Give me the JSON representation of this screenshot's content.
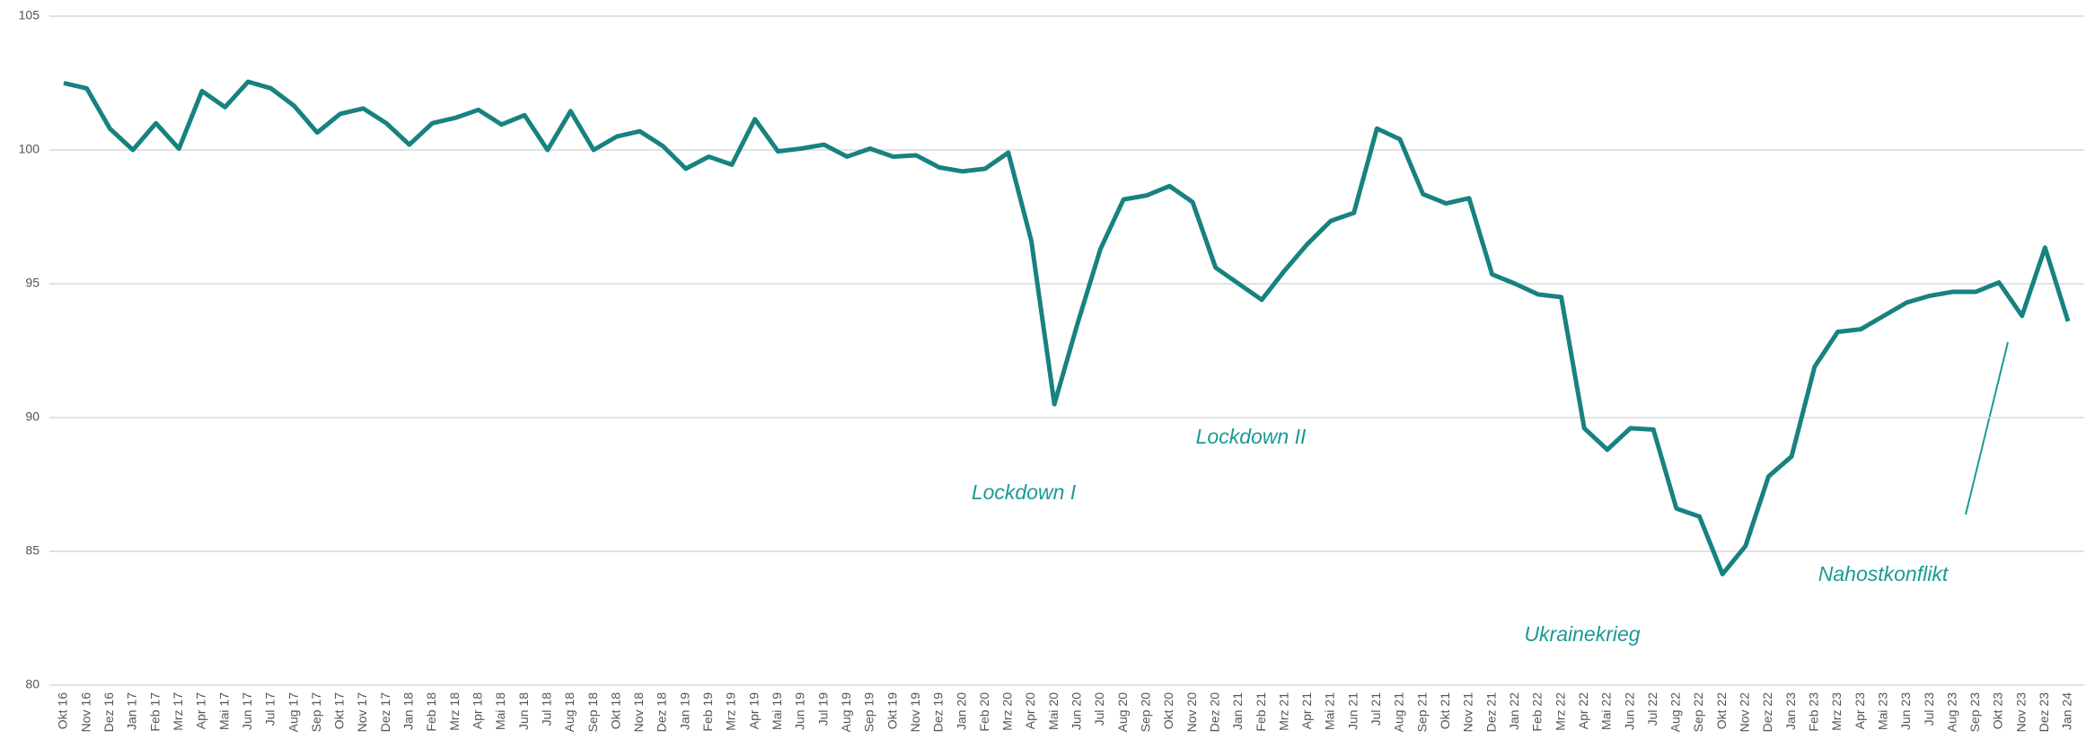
{
  "chart_data": {
    "type": "line",
    "categories": [
      "Okt 16",
      "Nov 16",
      "Dez 16",
      "Jan 17",
      "Feb 17",
      "Mrz 17",
      "Apr 17",
      "Mai 17",
      "Jun 17",
      "Jul 17",
      "Aug 17",
      "Sep 17",
      "Okt 17",
      "Nov 17",
      "Dez 17",
      "Jan 18",
      "Feb 18",
      "Mrz 18",
      "Apr 18",
      "Mai 18",
      "Jun 18",
      "Jul 18",
      "Aug 18",
      "Sep 18",
      "Okt 18",
      "Nov 18",
      "Dez 18",
      "Jan 19",
      "Feb 19",
      "Mrz 19",
      "Apr 19",
      "Mai 19",
      "Jun 19",
      "Jul 19",
      "Aug 19",
      "Sep 19",
      "Okt 19",
      "Nov 19",
      "Dez 19",
      "Jan 20",
      "Feb 20",
      "Mrz 20",
      "Apr 20",
      "Mai 20",
      "Jun 20",
      "Jul 20",
      "Aug 20",
      "Sep 20",
      "Okt 20",
      "Nov 20",
      "Dez 20",
      "Jan 21",
      "Feb 21",
      "Mrz 21",
      "Apr 21",
      "Mai 21",
      "Jun 21",
      "Jul 21",
      "Aug 21",
      "Sep 21",
      "Okt 21",
      "Nov 21",
      "Dez 21",
      "Jan 22",
      "Feb 22",
      "Mrz 22",
      "Apr 22",
      "Mai 22",
      "Jun 22",
      "Jul 22",
      "Aug 22",
      "Sep 22",
      "Okt 22",
      "Nov 22",
      "Dez 22",
      "Jan 23",
      "Feb 23",
      "Mrz 23",
      "Apr 23",
      "Mai 23",
      "Jun 23",
      "Jul 23",
      "Aug 23",
      "Sep 23",
      "Okt 23",
      "Nov 23",
      "Dez 23",
      "Jan 24"
    ],
    "values": [
      102.5,
      102.3,
      100.8,
      100.0,
      101.0,
      100.05,
      102.2,
      101.6,
      102.55,
      102.3,
      101.65,
      100.65,
      101.35,
      101.55,
      101.0,
      100.2,
      101.0,
      101.2,
      101.5,
      100.95,
      101.3,
      100.0,
      101.45,
      100.0,
      100.5,
      100.7,
      100.15,
      99.3,
      99.75,
      99.45,
      101.15,
      99.95,
      100.05,
      100.2,
      99.75,
      100.05,
      99.75,
      99.8,
      99.35,
      99.2,
      99.3,
      99.9,
      96.6,
      90.5,
      93.5,
      96.3,
      98.15,
      98.3,
      98.65,
      98.05,
      95.6,
      95.0,
      94.4,
      95.5,
      96.5,
      97.35,
      97.65,
      100.8,
      100.4,
      98.35,
      98.0,
      98.2,
      95.35,
      95.0,
      94.6,
      94.5,
      89.6,
      88.8,
      89.6,
      89.55,
      86.6,
      86.3,
      84.15,
      85.2,
      87.8,
      88.55,
      91.9,
      93.2,
      93.3,
      93.8,
      94.3,
      94.55,
      94.7,
      94.7,
      95.05,
      93.8,
      96.35,
      93.6
    ],
    "color": "#17827f",
    "ylim": [
      80,
      105
    ],
    "yticks": [
      80,
      85,
      90,
      95,
      100,
      105
    ],
    "grid": true,
    "annotations": [
      "Lockdown I",
      "Lockdown II",
      "Ukrainekrieg",
      "Nahostkonflikt"
    ]
  }
}
